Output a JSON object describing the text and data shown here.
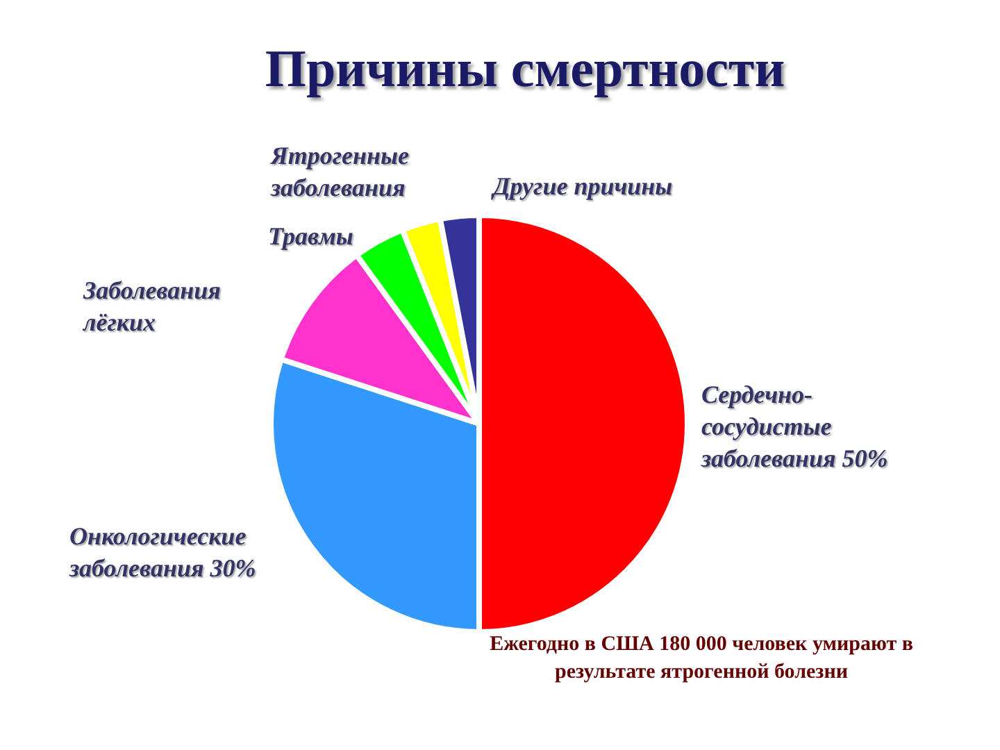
{
  "chart_data": {
    "type": "pie",
    "title": "Причины смертности",
    "categories": [
      "Сердечно-сосудистые заболевания",
      "Онкологические заболевания",
      "Заболевания лёгких",
      "Травмы",
      "Ятрогенные заболевания",
      "Другие причины"
    ],
    "values": [
      50,
      30,
      10,
      4,
      3,
      3
    ],
    "value_labels": [
      "50%",
      "30%",
      null,
      null,
      null,
      null
    ],
    "colors": [
      "#ff0000",
      "#3399ff",
      "#ff33cc",
      "#00ff00",
      "#ffff00",
      "#333399"
    ],
    "annotations": [
      "Ежегодно в США 180 000 человек умирают в результате ятрогенной болезни"
    ]
  }
}
